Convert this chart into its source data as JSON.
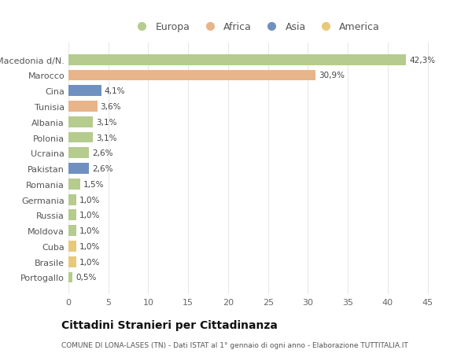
{
  "categories": [
    "Portogallo",
    "Brasile",
    "Cuba",
    "Moldova",
    "Russia",
    "Germania",
    "Romania",
    "Pakistan",
    "Ucraina",
    "Polonia",
    "Albania",
    "Tunisia",
    "Cina",
    "Marocco",
    "Macedonia d/N."
  ],
  "values": [
    0.5,
    1.0,
    1.0,
    1.0,
    1.0,
    1.0,
    1.5,
    2.6,
    2.6,
    3.1,
    3.1,
    3.6,
    4.1,
    30.9,
    42.3
  ],
  "colors": [
    "#b5cc8e",
    "#e8c97a",
    "#e8c97a",
    "#b5cc8e",
    "#b5cc8e",
    "#b5cc8e",
    "#b5cc8e",
    "#7090c0",
    "#b5cc8e",
    "#b5cc8e",
    "#b5cc8e",
    "#e8b48a",
    "#7090c0",
    "#e8b48a",
    "#b5cc8e"
  ],
  "labels": [
    "0,5%",
    "1,0%",
    "1,0%",
    "1,0%",
    "1,0%",
    "1,0%",
    "1,5%",
    "2,6%",
    "2,6%",
    "3,1%",
    "3,1%",
    "3,6%",
    "4,1%",
    "30,9%",
    "42,3%"
  ],
  "legend_labels": [
    "Europa",
    "Africa",
    "Asia",
    "America"
  ],
  "legend_colors": [
    "#b5cc8e",
    "#e8b48a",
    "#7090c0",
    "#e8c97a"
  ],
  "title": "Cittadini Stranieri per Cittadinanza",
  "subtitle": "COMUNE DI LONA-LASES (TN) - Dati ISTAT al 1° gennaio di ogni anno - Elaborazione TUTTITALIA.IT",
  "xlim": [
    0,
    47
  ],
  "xticks": [
    0,
    5,
    10,
    15,
    20,
    25,
    30,
    35,
    40,
    45
  ],
  "background_color": "#ffffff",
  "grid_color": "#e8e8e8",
  "bar_height": 0.7
}
